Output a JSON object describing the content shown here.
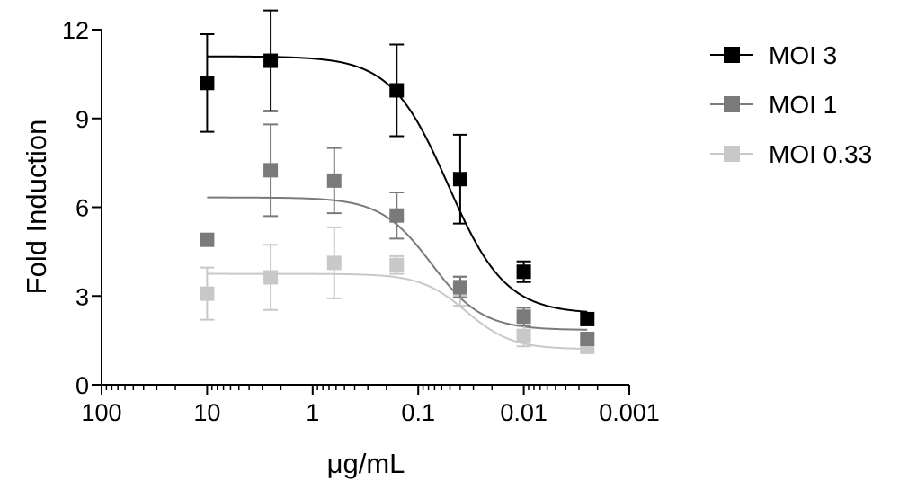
{
  "chart_data": {
    "type": "scatter",
    "xlabel": "μg/mL",
    "ylabel": "Fold Induction",
    "x_scale": "log",
    "x_reversed": true,
    "xlim": [
      100,
      0.001
    ],
    "ylim": [
      0,
      12
    ],
    "x_ticks": [
      100,
      10,
      1,
      0.1,
      0.01,
      0.001
    ],
    "x_tick_labels": [
      "100",
      "10",
      "1",
      "0.1",
      "0.01",
      "0.001"
    ],
    "y_ticks": [
      0,
      3,
      6,
      9,
      12
    ],
    "y_tick_labels": [
      "0",
      "3",
      "6",
      "9",
      "12"
    ],
    "grid": false,
    "legend_position": "top-right",
    "series": [
      {
        "name": "MOI 3",
        "color": "#000000",
        "x": [
          10,
          2.5,
          0.16,
          0.04,
          0.01,
          0.0025
        ],
        "y": [
          10.2,
          10.95,
          9.95,
          6.95,
          3.82,
          2.22
        ],
        "err": [
          1.65,
          1.7,
          1.55,
          1.5,
          0.35,
          0.0
        ],
        "fit": {
          "bottom": 2.4,
          "top": 11.1,
          "ec50": 0.052,
          "hill": 1.6
        }
      },
      {
        "name": "MOI 1",
        "color": "#7a7a7a",
        "x": [
          10,
          2.5,
          0.625,
          0.16,
          0.04,
          0.01,
          0.0025
        ],
        "y": [
          4.9,
          7.25,
          6.9,
          5.72,
          3.3,
          2.3,
          1.55
        ],
        "err": [
          0.0,
          1.55,
          1.1,
          0.78,
          0.35,
          0.3,
          0.0
        ],
        "fit": {
          "bottom": 1.85,
          "top": 6.33,
          "ec50": 0.075,
          "hill": 1.8
        }
      },
      {
        "name": "MOI 0.33",
        "color": "#c8c8c8",
        "x": [
          10,
          2.5,
          0.625,
          0.16,
          0.04,
          0.01,
          0.0025
        ],
        "y": [
          3.08,
          3.63,
          4.12,
          4.05,
          3.17,
          1.65,
          1.28
        ],
        "err": [
          0.88,
          1.1,
          1.2,
          0.3,
          0.5,
          0.35,
          0.0
        ],
        "fit": {
          "bottom": 1.2,
          "top": 3.75,
          "ec50": 0.035,
          "hill": 2.0
        }
      }
    ]
  }
}
